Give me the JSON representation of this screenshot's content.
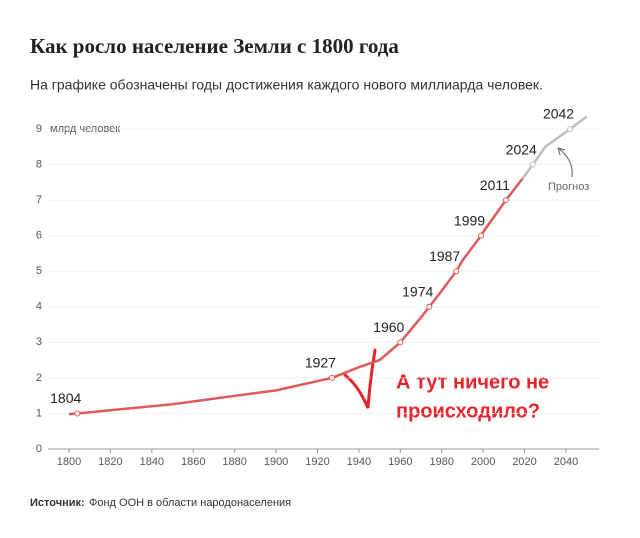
{
  "chart_data": {
    "type": "line",
    "title": "Как росло население Земли с 1800 года",
    "subtitle": "На графике обозначены годы достижения каждого нового миллиарда человек.",
    "y_axis_label": "млрд человек",
    "source_label": "Источник:",
    "source": "Фонд ООН в области народонаселения",
    "annotations": {
      "question": [
        "А тут ничего не",
        "происходило?"
      ],
      "forecast": "Прогноз"
    },
    "xlim": [
      1790,
      2056
    ],
    "xticks": [
      1800,
      1820,
      1840,
      1860,
      1880,
      1900,
      1920,
      1940,
      1960,
      1980,
      2000,
      2020,
      2040
    ],
    "ylim": [
      0,
      9
    ],
    "yticks": [
      0,
      1,
      2,
      3,
      4,
      5,
      6,
      7,
      8,
      9
    ],
    "grid": true,
    "series": [
      {
        "color": "#e05a5a",
        "x": [
          1800,
          1804,
          1850,
          1900,
          1927,
          1940,
          1950,
          1960,
          1970,
          1974,
          1980,
          1987,
          1990,
          1999,
          2000,
          2011,
          2019
        ],
        "values": [
          0.98,
          1,
          1.26,
          1.65,
          2,
          2.3,
          2.5,
          3,
          3.7,
          4,
          4.45,
          5,
          5.3,
          6,
          6.1,
          7,
          7.6
        ]
      },
      {
        "color": "#bdbdbd",
        "x": [
          2019,
          2024,
          2030,
          2042,
          2050
        ],
        "values": [
          7.6,
          8,
          8.5,
          9,
          9.35
        ]
      }
    ],
    "milestones": {
      "x": [
        1804,
        1927,
        1960,
        1974,
        1987,
        1999,
        2011,
        2024,
        2042
      ],
      "values": [
        1,
        2,
        3,
        4,
        5,
        6,
        7,
        8,
        9
      ]
    }
  }
}
